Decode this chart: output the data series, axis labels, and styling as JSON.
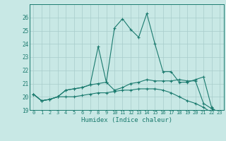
{
  "title": "",
  "xlabel": "Humidex (Indice chaleur)",
  "x": [
    0,
    1,
    2,
    3,
    4,
    5,
    6,
    7,
    8,
    9,
    10,
    11,
    12,
    13,
    14,
    15,
    16,
    17,
    18,
    19,
    20,
    21,
    22,
    23
  ],
  "line1": [
    20.2,
    19.7,
    19.8,
    20.0,
    20.5,
    20.6,
    20.7,
    20.9,
    21.0,
    21.1,
    20.5,
    20.7,
    21.0,
    21.1,
    21.3,
    21.2,
    21.2,
    21.2,
    21.3,
    21.2,
    21.2,
    19.5,
    19.1,
    18.7
  ],
  "line2": [
    20.2,
    19.7,
    19.8,
    20.0,
    20.5,
    20.6,
    20.7,
    20.9,
    23.8,
    21.1,
    25.2,
    25.9,
    25.1,
    24.5,
    26.3,
    24.0,
    21.9,
    21.9,
    21.1,
    21.1,
    21.3,
    21.5,
    19.2,
    18.7
  ],
  "line3": [
    20.2,
    19.7,
    19.8,
    20.0,
    20.0,
    20.0,
    20.1,
    20.2,
    20.3,
    20.3,
    20.4,
    20.5,
    20.5,
    20.6,
    20.6,
    20.6,
    20.5,
    20.3,
    20.0,
    19.7,
    19.5,
    19.2,
    18.8,
    18.7
  ],
  "ylim": [
    19,
    27
  ],
  "xlim": [
    -0.5,
    23.5
  ],
  "yticks": [
    19,
    20,
    21,
    22,
    23,
    24,
    25,
    26
  ],
  "xticks": [
    0,
    1,
    2,
    3,
    4,
    5,
    6,
    7,
    8,
    9,
    10,
    11,
    12,
    13,
    14,
    15,
    16,
    17,
    18,
    19,
    20,
    21,
    22,
    23
  ],
  "line_color": "#1a7a6e",
  "bg_color": "#c8e8e5",
  "grid_color": "#a8cccb"
}
